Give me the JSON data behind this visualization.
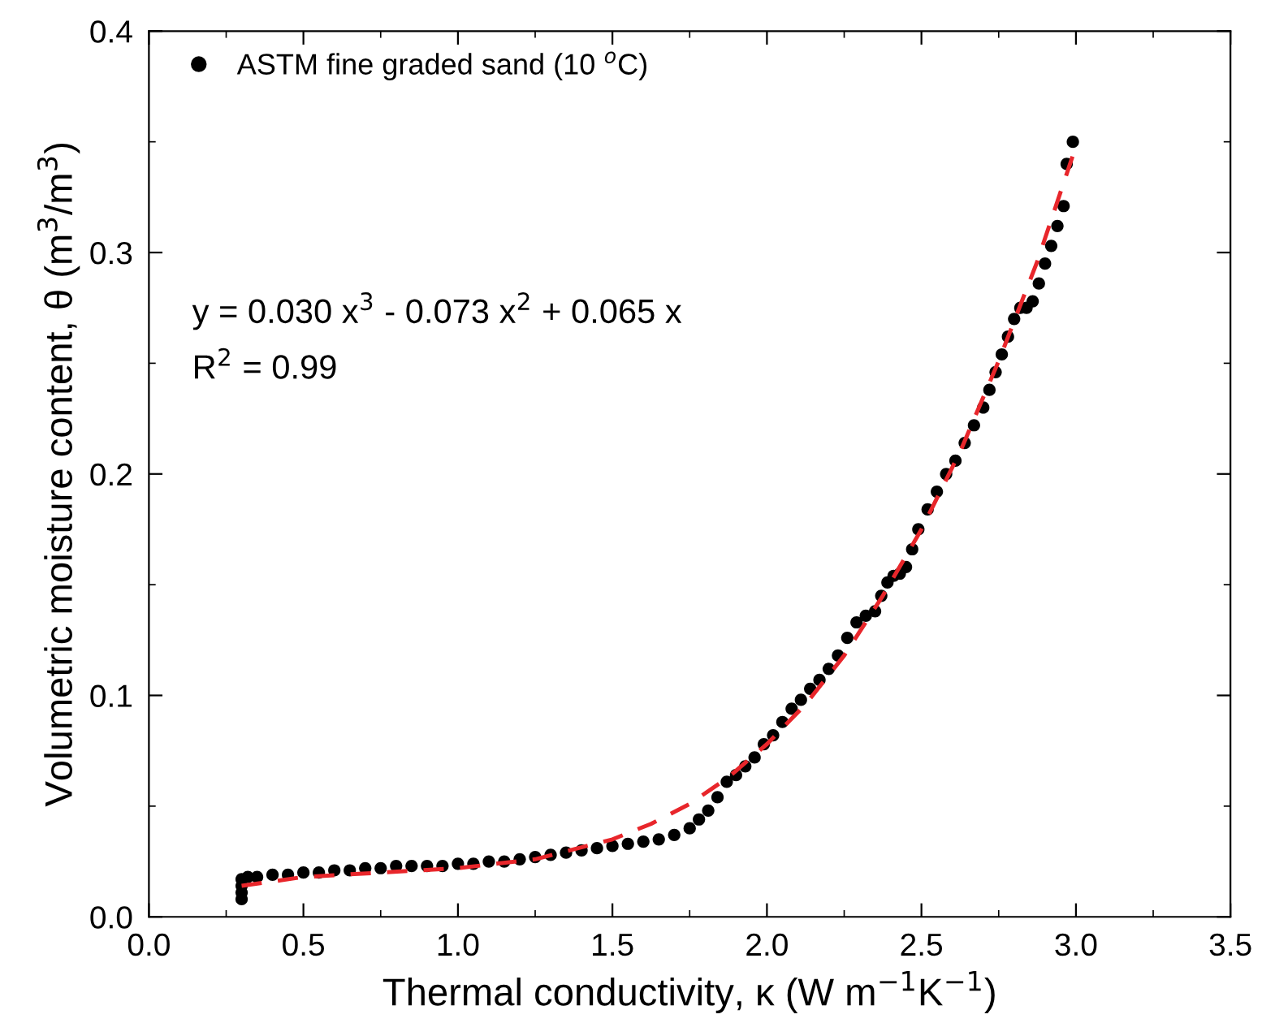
{
  "chart_data": {
    "type": "scatter",
    "xlabel": "Thermal conductivity, κ (W m$^{−1}$K$^{−1}$)",
    "ylabel": "Volumetric moisture content, θ (m$^{3}$/m$^{3}$)",
    "xlim": [
      0.0,
      3.5
    ],
    "xticks": [
      {
        "value": 0,
        "label": "0.0"
      },
      0.5,
      {
        "value": 1,
        "label": "1.0"
      },
      1.5,
      {
        "value": 2,
        "label": "2.0"
      },
      2.5,
      {
        "value": 3,
        "label": "3.0"
      },
      3.5
    ],
    "ylim": [
      0.0,
      0.4
    ],
    "yticks": [
      {
        "value": 0,
        "label": "0.0"
      },
      0.1,
      0.2,
      0.3,
      0.4
    ],
    "grid": false,
    "legend": "top left",
    "marker": "circle",
    "annotations": [
      "y = 0.030 x$^{3}$ - 0.073 x$^{2}$ + 0.065 x",
      "R$^{2}$ = 0.99"
    ],
    "series": [
      {
        "name": "ASTM fine graded sand (10 $^{o}$C)",
        "color": "#000000",
        "x": [
          0.3,
          0.3,
          0.3,
          0.3,
          0.32,
          0.35,
          0.4,
          0.45,
          0.5,
          0.55,
          0.6,
          0.65,
          0.7,
          0.75,
          0.8,
          0.85,
          0.9,
          0.95,
          1.0,
          1.05,
          1.1,
          1.15,
          1.2,
          1.25,
          1.3,
          1.35,
          1.4,
          1.45,
          1.5,
          1.55,
          1.6,
          1.65,
          1.7,
          1.75,
          1.78,
          1.81,
          1.84,
          1.87,
          1.9,
          1.93,
          1.96,
          1.99,
          2.02,
          2.05,
          2.08,
          2.11,
          2.14,
          2.17,
          2.2,
          2.23,
          2.26,
          2.29,
          2.32,
          2.35,
          2.37,
          2.39,
          2.41,
          2.43,
          2.45,
          2.47,
          2.49,
          2.52,
          2.55,
          2.58,
          2.61,
          2.64,
          2.67,
          2.7,
          2.72,
          2.74,
          2.76,
          2.78,
          2.8,
          2.82,
          2.84,
          2.86,
          2.88,
          2.9,
          2.92,
          2.94,
          2.96,
          2.97,
          2.99
        ],
        "values": [
          0.008,
          0.011,
          0.014,
          0.017,
          0.018,
          0.018,
          0.019,
          0.019,
          0.02,
          0.02,
          0.021,
          0.021,
          0.022,
          0.022,
          0.023,
          0.023,
          0.023,
          0.023,
          0.024,
          0.024,
          0.025,
          0.025,
          0.026,
          0.027,
          0.028,
          0.029,
          0.03,
          0.031,
          0.032,
          0.033,
          0.034,
          0.035,
          0.037,
          0.04,
          0.044,
          0.048,
          0.054,
          0.061,
          0.064,
          0.068,
          0.072,
          0.078,
          0.082,
          0.088,
          0.094,
          0.098,
          0.103,
          0.107,
          0.112,
          0.118,
          0.126,
          0.133,
          0.136,
          0.138,
          0.145,
          0.151,
          0.154,
          0.155,
          0.158,
          0.166,
          0.175,
          0.184,
          0.192,
          0.2,
          0.206,
          0.214,
          0.222,
          0.23,
          0.238,
          0.246,
          0.254,
          0.262,
          0.27,
          0.275,
          0.275,
          0.278,
          0.286,
          0.295,
          0.303,
          0.312,
          0.321,
          0.34,
          0.35
        ]
      },
      {
        "color": "#e8262b",
        "type": "line",
        "line_style": "dashed",
        "marker": "none",
        "x": [
          0.3,
          0.5,
          0.75,
          1.0,
          1.25,
          1.5,
          1.625,
          1.75,
          1.875,
          2.0,
          2.125,
          2.25,
          2.375,
          2.5,
          2.625,
          2.75,
          2.875,
          3.0
        ],
        "values": [
          0.014,
          0.018,
          0.02,
          0.022,
          0.026,
          0.035,
          0.042,
          0.051,
          0.063,
          0.078,
          0.096,
          0.118,
          0.145,
          0.175,
          0.21,
          0.251,
          0.296,
          0.348
        ]
      }
    ]
  }
}
